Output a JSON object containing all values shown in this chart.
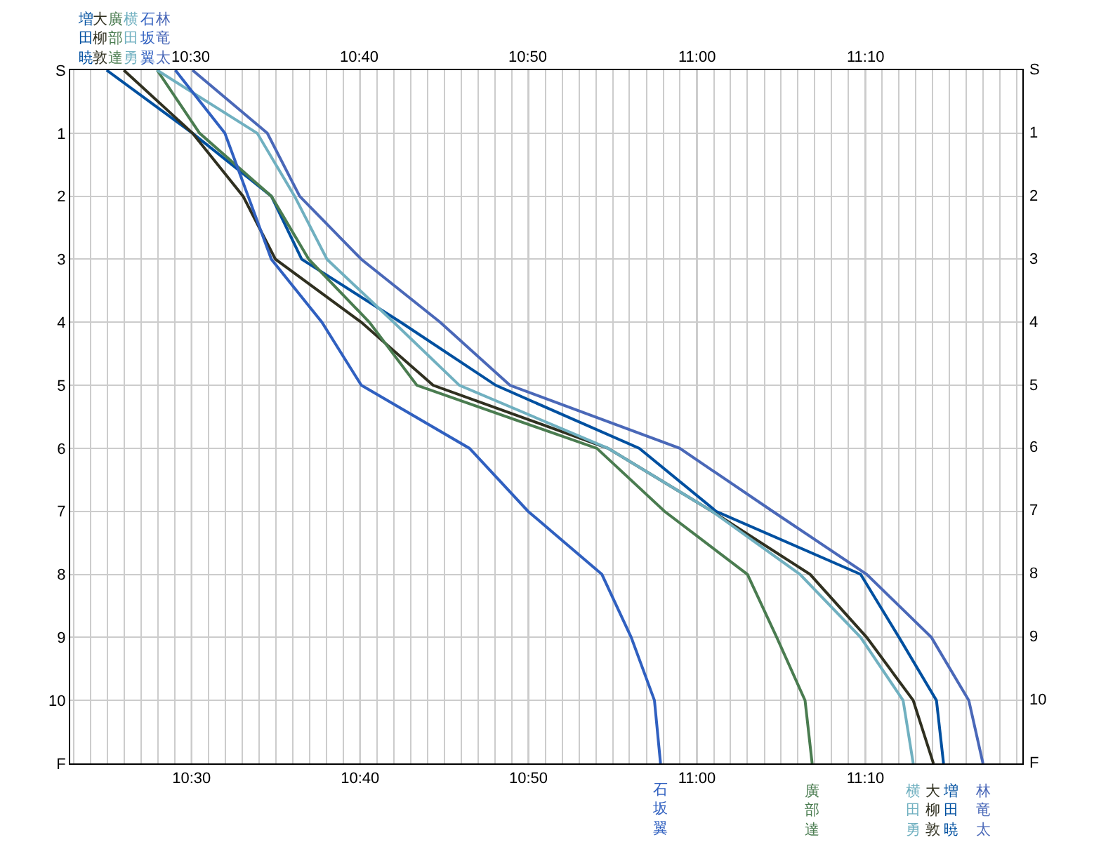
{
  "chart_data": {
    "type": "line",
    "grid": true,
    "xlim": [
      10.38,
      11.322
    ],
    "xticks": [
      {
        "value": 10.3833,
        "label": null
      },
      {
        "value": 10.4,
        "label": null
      },
      {
        "value": 10.4167,
        "label": null
      },
      {
        "value": 10.4333,
        "label": null
      },
      {
        "value": 10.45,
        "label": null
      },
      {
        "value": 10.4667,
        "label": null
      },
      {
        "value": 10.4833,
        "label": null
      },
      {
        "value": 10.5,
        "label": "10:30"
      },
      {
        "value": 10.5167,
        "label": null
      },
      {
        "value": 10.5333,
        "label": null
      },
      {
        "value": 10.55,
        "label": null
      },
      {
        "value": 10.5667,
        "label": null
      },
      {
        "value": 10.5833,
        "label": null
      },
      {
        "value": 10.6,
        "label": null
      },
      {
        "value": 10.6167,
        "label": null
      },
      {
        "value": 10.6333,
        "label": null
      },
      {
        "value": 10.65,
        "label": null
      },
      {
        "value": 10.6667,
        "label": "10:40"
      },
      {
        "value": 10.6833,
        "label": null
      },
      {
        "value": 10.7,
        "label": null
      },
      {
        "value": 10.7167,
        "label": null
      },
      {
        "value": 10.7333,
        "label": null
      },
      {
        "value": 10.75,
        "label": null
      },
      {
        "value": 10.7667,
        "label": null
      },
      {
        "value": 10.7833,
        "label": null
      },
      {
        "value": 10.8,
        "label": null
      },
      {
        "value": 10.8167,
        "label": null
      },
      {
        "value": 10.8333,
        "label": "10:50"
      },
      {
        "value": 10.85,
        "label": null
      },
      {
        "value": 10.8667,
        "label": null
      },
      {
        "value": 10.8833,
        "label": null
      },
      {
        "value": 10.9,
        "label": null
      },
      {
        "value": 10.9167,
        "label": null
      },
      {
        "value": 10.9333,
        "label": null
      },
      {
        "value": 10.95,
        "label": null
      },
      {
        "value": 10.9667,
        "label": null
      },
      {
        "value": 10.9833,
        "label": null
      },
      {
        "value": 11,
        "label": "11:00"
      },
      {
        "value": 11.0167,
        "label": null
      },
      {
        "value": 11.0333,
        "label": null
      },
      {
        "value": 11.05,
        "label": null
      },
      {
        "value": 11.0667,
        "label": null
      },
      {
        "value": 11.0833,
        "label": null
      },
      {
        "value": 11.1,
        "label": null
      },
      {
        "value": 11.1167,
        "label": null
      },
      {
        "value": 11.1333,
        "label": null
      },
      {
        "value": 11.15,
        "label": null
      },
      {
        "value": 11.1667,
        "label": "11:10"
      },
      {
        "value": 11.1833,
        "label": null
      },
      {
        "value": 11.2,
        "label": null
      },
      {
        "value": 11.2167,
        "label": null
      },
      {
        "value": 11.2333,
        "label": null
      },
      {
        "value": 11.25,
        "label": null
      },
      {
        "value": 11.2667,
        "label": null
      },
      {
        "value": 11.2833,
        "label": null
      },
      {
        "value": 11.3,
        "label": null
      },
      {
        "value": 11.3167,
        "label": null
      }
    ],
    "x2lim": [
      10.38,
      11.322
    ],
    "x2ticks": [
      {
        "value": 10.5,
        "label": "10:30"
      },
      {
        "value": 10.6667,
        "label": "10:40"
      },
      {
        "value": 10.8333,
        "label": "10:50"
      },
      {
        "value": 11,
        "label": "11:00"
      },
      {
        "value": 11.1667,
        "label": "11:10"
      }
    ],
    "ylim": [
      11,
      0
    ],
    "yticks": [
      {
        "value": 0,
        "label": "S"
      },
      1,
      2,
      3,
      4,
      5,
      6,
      7,
      8,
      9,
      10,
      {
        "value": 11,
        "label": "F"
      }
    ],
    "y2lim": [
      11,
      0
    ],
    "y2ticks": [
      {
        "value": 0,
        "label": "S"
      },
      1,
      2,
      3,
      4,
      5,
      6,
      7,
      8,
      9,
      10,
      {
        "value": 11,
        "label": "F"
      }
    ],
    "series": [
      {
        "name": "増田暁",
        "color": "#0050a0",
        "x": [
          10.416,
          10.501,
          10.579,
          10.609,
          10.707,
          10.801,
          10.943,
          11.019,
          11.162,
          11.2,
          11.237,
          11.244
        ],
        "values": [
          0,
          1,
          2,
          3,
          4,
          5,
          6,
          7,
          8,
          9,
          10,
          11
        ]
      },
      {
        "name": "大柳敦",
        "color": "#303020",
        "x": [
          10.433,
          10.501,
          10.551,
          10.583,
          10.668,
          10.739,
          10.912,
          11.015,
          11.112,
          11.168,
          11.214,
          11.234
        ],
        "values": [
          0,
          1,
          2,
          3,
          4,
          5,
          6,
          7,
          8,
          9,
          10,
          11
        ]
      },
      {
        "name": "廣部達",
        "color": "#4a7c50",
        "x": [
          10.466,
          10.508,
          10.579,
          10.616,
          10.676,
          10.723,
          10.901,
          10.968,
          11.05,
          11.079,
          11.107,
          11.114
        ],
        "values": [
          0,
          1,
          2,
          3,
          4,
          5,
          6,
          7,
          8,
          9,
          10,
          11
        ]
      },
      {
        "name": "横田勇",
        "color": "#70b0c0",
        "x": [
          10.466,
          10.565,
          10.602,
          10.634,
          10.7,
          10.765,
          10.912,
          11.015,
          11.102,
          11.162,
          11.204,
          11.214
        ],
        "values": [
          0,
          1,
          2,
          3,
          4,
          5,
          6,
          7,
          8,
          9,
          10,
          11
        ]
      },
      {
        "name": "石坂翼",
        "color": "#3060c0",
        "x": [
          10.484,
          10.533,
          10.556,
          10.579,
          10.629,
          10.668,
          10.775,
          10.833,
          10.906,
          10.935,
          10.958,
          10.964
        ],
        "values": [
          0,
          1,
          2,
          3,
          4,
          5,
          6,
          7,
          8,
          9,
          10,
          11
        ]
      },
      {
        "name": "林竜太",
        "color": "#4a68b8",
        "x": [
          10.501,
          10.575,
          10.607,
          10.668,
          10.746,
          10.815,
          10.983,
          11.075,
          11.168,
          11.232,
          11.269,
          11.283
        ],
        "values": [
          0,
          1,
          2,
          3,
          4,
          5,
          6,
          7,
          8,
          9,
          10,
          11
        ]
      }
    ]
  }
}
